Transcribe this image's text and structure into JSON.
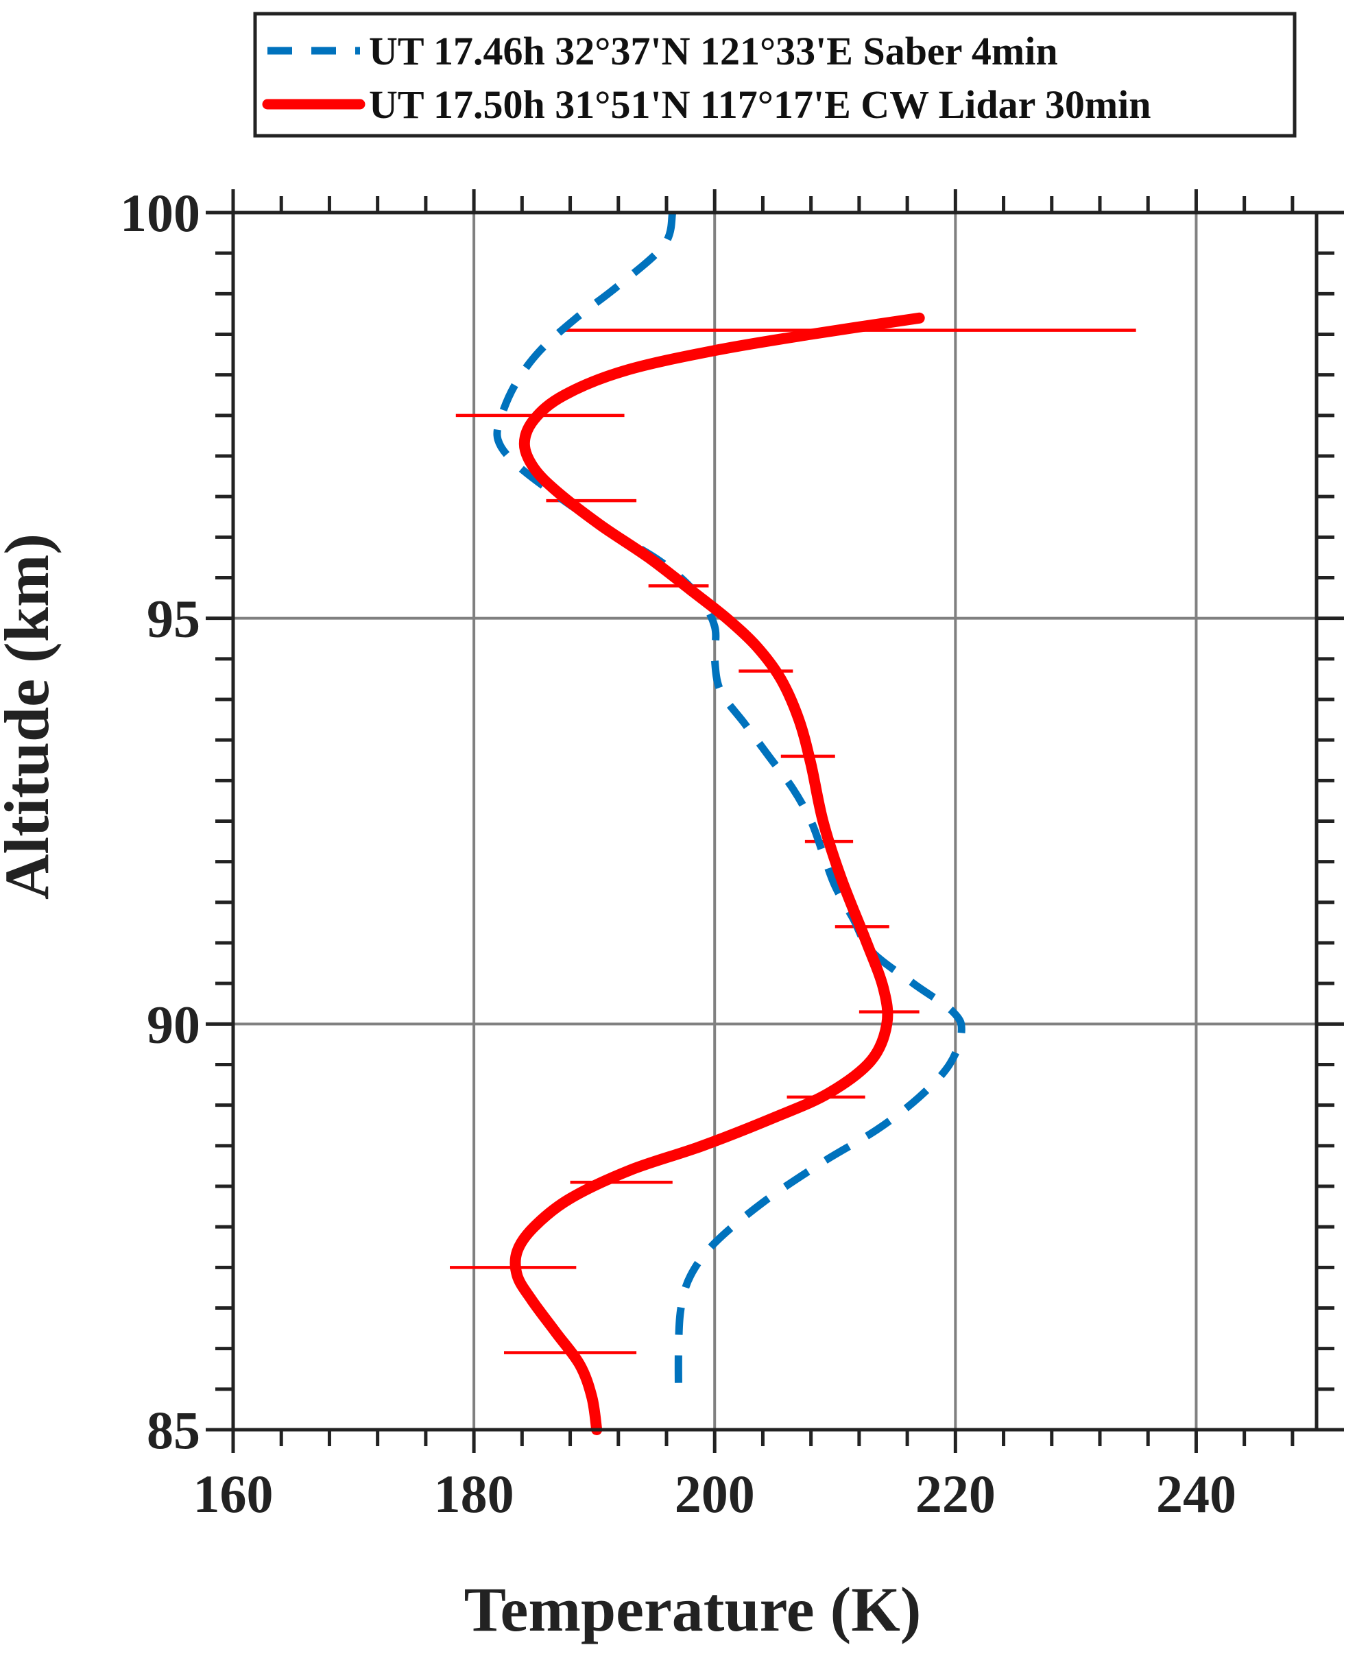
{
  "chart_data": {
    "type": "line",
    "xlabel": "Temperature (K)",
    "ylabel": "Altitude (km)",
    "xlim": [
      160,
      250
    ],
    "ylim": [
      85,
      100
    ],
    "x_ticks": [
      160,
      180,
      200,
      220,
      240
    ],
    "y_ticks": [
      85,
      90,
      95,
      100
    ],
    "x_minor_step": 4,
    "y_minor_step": 0.5,
    "grid": true,
    "legend_placement": "top, above plot",
    "series": [
      {
        "name": "UT 17.46h 32°37'N 121°33'E  Saber 4min",
        "color": "#0072BD",
        "style": "dashed",
        "points": [
          {
            "x": 196.5,
            "y": 100.0
          },
          {
            "x": 195.8,
            "y": 99.6
          },
          {
            "x": 192.0,
            "y": 99.1
          },
          {
            "x": 188.5,
            "y": 98.7
          },
          {
            "x": 185.5,
            "y": 98.3
          },
          {
            "x": 183.5,
            "y": 97.9
          },
          {
            "x": 182.3,
            "y": 97.5
          },
          {
            "x": 182.0,
            "y": 97.2
          },
          {
            "x": 183.5,
            "y": 96.9
          },
          {
            "x": 187.0,
            "y": 96.5
          },
          {
            "x": 191.0,
            "y": 96.1
          },
          {
            "x": 195.5,
            "y": 95.7
          },
          {
            "x": 198.5,
            "y": 95.3
          },
          {
            "x": 200.0,
            "y": 94.9
          },
          {
            "x": 200.0,
            "y": 94.5
          },
          {
            "x": 200.5,
            "y": 94.1
          },
          {
            "x": 202.5,
            "y": 93.7
          },
          {
            "x": 204.5,
            "y": 93.3
          },
          {
            "x": 206.5,
            "y": 92.9
          },
          {
            "x": 208.0,
            "y": 92.5
          },
          {
            "x": 209.0,
            "y": 92.1
          },
          {
            "x": 210.0,
            "y": 91.7
          },
          {
            "x": 211.5,
            "y": 91.3
          },
          {
            "x": 213.0,
            "y": 90.9
          },
          {
            "x": 216.5,
            "y": 90.5
          },
          {
            "x": 219.8,
            "y": 90.15
          },
          {
            "x": 220.5,
            "y": 89.9
          },
          {
            "x": 219.5,
            "y": 89.5
          },
          {
            "x": 217.0,
            "y": 89.1
          },
          {
            "x": 213.5,
            "y": 88.7
          },
          {
            "x": 209.0,
            "y": 88.3
          },
          {
            "x": 204.0,
            "y": 87.8
          },
          {
            "x": 200.0,
            "y": 87.3
          },
          {
            "x": 198.0,
            "y": 86.9
          },
          {
            "x": 197.2,
            "y": 86.5
          },
          {
            "x": 197.0,
            "y": 86.0
          },
          {
            "x": 197.0,
            "y": 85.4
          }
        ]
      },
      {
        "name": "UT 17.50h 31°51'N 117°17'E CW Lidar 30min",
        "color": "#FF0000",
        "style": "solid",
        "points": [
          {
            "x": 217.0,
            "y": 98.7
          },
          {
            "x": 208.0,
            "y": 98.5
          },
          {
            "x": 200.0,
            "y": 98.3
          },
          {
            "x": 192.5,
            "y": 98.05
          },
          {
            "x": 187.5,
            "y": 97.75
          },
          {
            "x": 185.0,
            "y": 97.45
          },
          {
            "x": 184.2,
            "y": 97.15
          },
          {
            "x": 185.0,
            "y": 96.85
          },
          {
            "x": 187.0,
            "y": 96.55
          },
          {
            "x": 190.5,
            "y": 96.15
          },
          {
            "x": 194.5,
            "y": 95.75
          },
          {
            "x": 198.0,
            "y": 95.35
          },
          {
            "x": 201.0,
            "y": 95.0
          },
          {
            "x": 203.5,
            "y": 94.65
          },
          {
            "x": 205.5,
            "y": 94.25
          },
          {
            "x": 207.0,
            "y": 93.75
          },
          {
            "x": 208.0,
            "y": 93.2
          },
          {
            "x": 209.0,
            "y": 92.5
          },
          {
            "x": 210.5,
            "y": 91.8
          },
          {
            "x": 212.5,
            "y": 91.05
          },
          {
            "x": 214.0,
            "y": 90.45
          },
          {
            "x": 214.3,
            "y": 90.0
          },
          {
            "x": 213.0,
            "y": 89.55
          },
          {
            "x": 209.5,
            "y": 89.15
          },
          {
            "x": 205.0,
            "y": 88.85
          },
          {
            "x": 199.0,
            "y": 88.5
          },
          {
            "x": 193.0,
            "y": 88.2
          },
          {
            "x": 188.0,
            "y": 87.85
          },
          {
            "x": 185.0,
            "y": 87.5
          },
          {
            "x": 183.6,
            "y": 87.2
          },
          {
            "x": 183.6,
            "y": 86.9
          },
          {
            "x": 184.8,
            "y": 86.6
          },
          {
            "x": 186.8,
            "y": 86.2
          },
          {
            "x": 188.8,
            "y": 85.8
          },
          {
            "x": 189.8,
            "y": 85.4
          },
          {
            "x": 190.2,
            "y": 85.0
          }
        ],
        "error_bars": [
          {
            "y": 98.55,
            "x_min": 187.0,
            "x_max": 235.0
          },
          {
            "y": 97.5,
            "x_min": 178.5,
            "x_max": 192.5
          },
          {
            "x_min": 186.0,
            "x_max": 193.5,
            "y": 96.45
          },
          {
            "y": 95.4,
            "x_min": 194.5,
            "x_max": 199.5
          },
          {
            "y": 94.35,
            "x_min": 202.0,
            "x_max": 206.5
          },
          {
            "y": 93.3,
            "x_min": 205.5,
            "x_max": 210.0
          },
          {
            "y": 92.25,
            "x_min": 207.5,
            "x_max": 211.5
          },
          {
            "y": 91.2,
            "x_min": 210.0,
            "x_max": 214.5
          },
          {
            "y": 90.15,
            "x_min": 212.0,
            "x_max": 217.0
          },
          {
            "y": 89.1,
            "x_min": 206.0,
            "x_max": 212.5
          },
          {
            "y": 88.05,
            "x_min": 188.0,
            "x_max": 196.5
          },
          {
            "y": 87.0,
            "x_min": 178.0,
            "x_max": 188.5
          },
          {
            "y": 85.95,
            "x_min": 182.5,
            "x_max": 193.5
          }
        ]
      }
    ]
  }
}
